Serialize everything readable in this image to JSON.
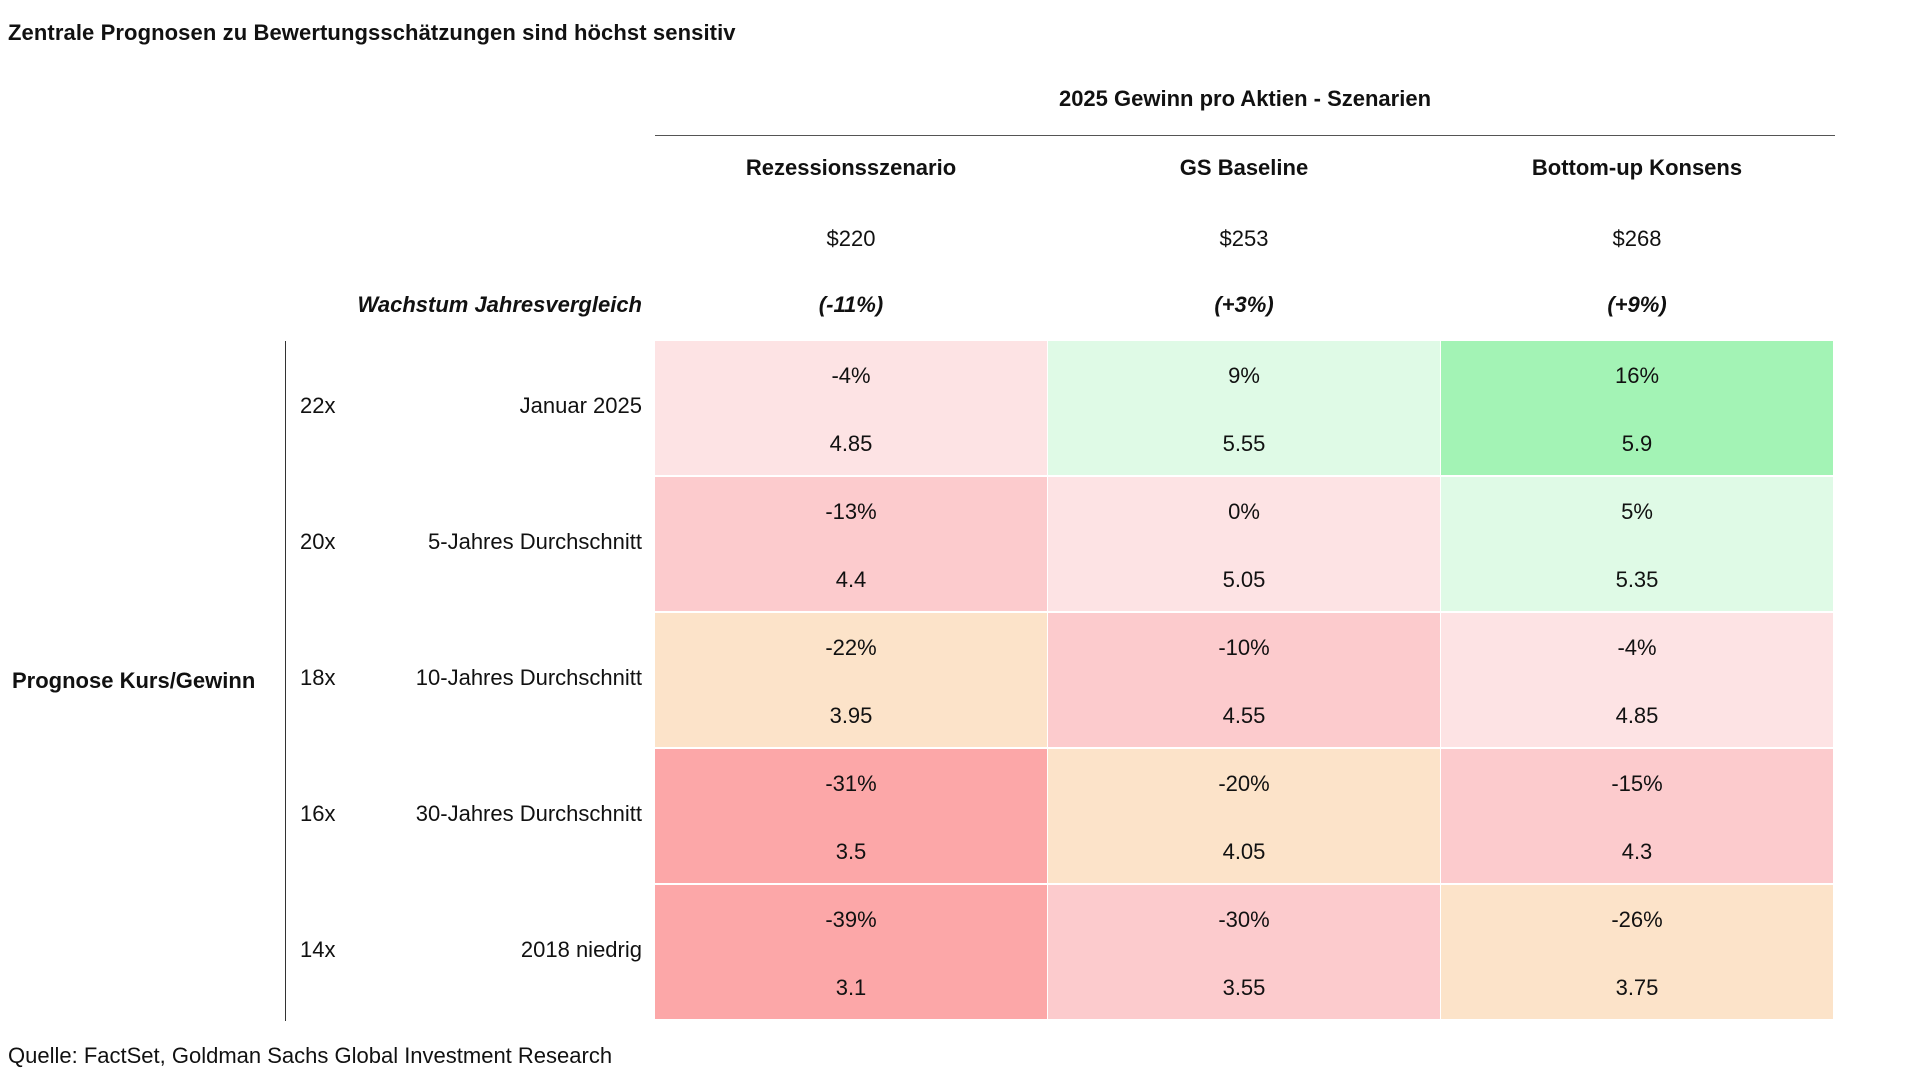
{
  "title": "Zentrale Prognosen zu Bewertungsschätzungen sind höchst sensitiv",
  "source": "Quelle: FactSet, Goldman Sachs Global Investment Research",
  "chart_data": {
    "type": "table",
    "column_group_header": "2025 Gewinn pro Aktien - Szenarien",
    "row_group_header": "Prognose Kurs/Gewinn",
    "growth_label": "Wachstum Jahresvergleich",
    "columns": [
      {
        "name": "Rezessionsszenario",
        "eps": "$220",
        "growth": "(-11%)"
      },
      {
        "name": "GS Baseline",
        "eps": "$253",
        "growth": "(+3%)"
      },
      {
        "name": "Bottom-up Konsens",
        "eps": "$268",
        "growth": "(+9%)"
      }
    ],
    "rows": [
      {
        "pe": "22x",
        "label": "Januar 2025"
      },
      {
        "pe": "20x",
        "label": "5-Jahres Durchschnitt"
      },
      {
        "pe": "18x",
        "label": "10-Jahres Durchschnitt"
      },
      {
        "pe": "16x",
        "label": "30-Jahres Durchschnitt"
      },
      {
        "pe": "14x",
        "label": "2018 niedrig"
      }
    ],
    "cells": [
      [
        {
          "pct": "-4%",
          "value": "4.85"
        },
        {
          "pct": "9%",
          "value": "5.55"
        },
        {
          "pct": "16%",
          "value": "5.9"
        }
      ],
      [
        {
          "pct": "-13%",
          "value": "4.4"
        },
        {
          "pct": "0%",
          "value": "5.05"
        },
        {
          "pct": "5%",
          "value": "5.35"
        }
      ],
      [
        {
          "pct": "-22%",
          "value": "3.95"
        },
        {
          "pct": "-10%",
          "value": "4.55"
        },
        {
          "pct": "-4%",
          "value": "4.85"
        }
      ],
      [
        {
          "pct": "-31%",
          "value": "3.5"
        },
        {
          "pct": "-20%",
          "value": "4.05"
        },
        {
          "pct": "-15%",
          "value": "4.3"
        }
      ],
      [
        {
          "pct": "-39%",
          "value": "3.1"
        },
        {
          "pct": "-30%",
          "value": "3.55"
        },
        {
          "pct": "-26%",
          "value": "3.75"
        }
      ]
    ],
    "cell_colors": [
      [
        "#fde3e4",
        "#dffae6",
        "#a3f3b5"
      ],
      [
        "#fccbcd",
        "#fde3e4",
        "#dffae6"
      ],
      [
        "#fce3c9",
        "#fccbcd",
        "#fde3e4"
      ],
      [
        "#fca7a8",
        "#fce3c9",
        "#fccbcd"
      ],
      [
        "#fca7a8",
        "#fccbcd",
        "#fce3c9"
      ]
    ]
  }
}
